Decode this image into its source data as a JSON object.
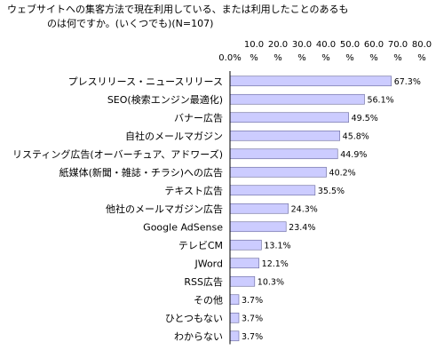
{
  "chart_data": {
    "type": "bar",
    "orientation": "horizontal",
    "title_lines": [
      "ウェブサイトへの集客方法で現在利用している、または利用したことのあるも",
      "のは何ですか。(いくつでも)(N=107)"
    ],
    "xlim": [
      0,
      80
    ],
    "ticks": [
      {
        "top": "",
        "bottom": "0.0%"
      },
      {
        "top": "10.0",
        "bottom": "%"
      },
      {
        "top": "20.0",
        "bottom": "%"
      },
      {
        "top": "30.0",
        "bottom": "%"
      },
      {
        "top": "40.0",
        "bottom": "%"
      },
      {
        "top": "50.0",
        "bottom": "%"
      },
      {
        "top": "60.0",
        "bottom": "%"
      },
      {
        "top": "70.0",
        "bottom": "%"
      },
      {
        "top": "80.0",
        "bottom": "%"
      }
    ],
    "categories": [
      "プレスリリース・ニュースリリース",
      "SEO(検索エンジン最適化)",
      "バナー広告",
      "自社のメールマガジン",
      "リスティング広告(オーバーチュア、アドワーズ)",
      "紙媒体(新聞・雑誌・チラシ)への広告",
      "テキスト広告",
      "他社のメールマガジン広告",
      "Google AdSense",
      "テレビCM",
      "JWord",
      "RSS広告",
      "その他",
      "ひとつもない",
      "わからない"
    ],
    "values": [
      67.3,
      56.1,
      49.5,
      45.8,
      44.9,
      40.2,
      35.5,
      24.3,
      23.4,
      13.1,
      12.1,
      10.3,
      3.7,
      3.7,
      3.7
    ],
    "value_labels": [
      "67.3%",
      "56.1%",
      "49.5%",
      "45.8%",
      "44.9%",
      "40.2%",
      "35.5%",
      "24.3%",
      "23.4%",
      "13.1%",
      "12.1%",
      "10.3%",
      "3.7%",
      "3.7%",
      "3.7%"
    ],
    "grid": false,
    "legend": "none",
    "colors": {
      "bar_fill": "#ccccff",
      "bar_stroke": "#666699",
      "axis": "#000000"
    }
  }
}
